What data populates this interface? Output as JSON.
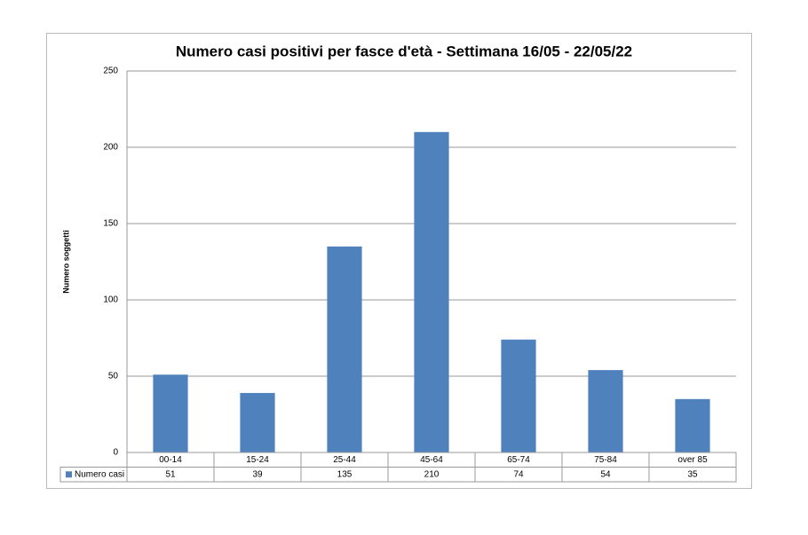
{
  "chart_data": {
    "type": "bar",
    "title": "Numero casi positivi per fasce d'età - Settimana 16/05 - 22/05/22",
    "y_label": "Numero soggetti",
    "categories": [
      "00-14",
      "15-24",
      "25-44",
      "45-64",
      "65-74",
      "75-84",
      "over 85"
    ],
    "series": [
      {
        "name": "Numero casi",
        "color": "#4f81bd",
        "values": [
          51,
          39,
          135,
          210,
          74,
          54,
          35
        ]
      }
    ],
    "ylim": [
      0,
      250
    ],
    "yticks": [
      0,
      50,
      100,
      150,
      200,
      250
    ],
    "grid": true,
    "data_table": true
  }
}
